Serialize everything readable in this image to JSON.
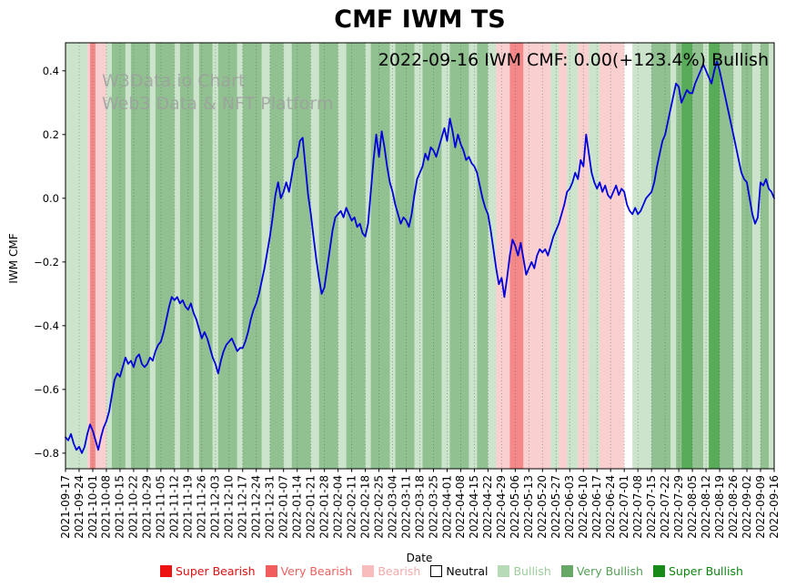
{
  "annotation": "2022-09-16 IWM CMF: 0.00(+123.4%) Bullish",
  "watermark": {
    "line1": "W3Data.io Chart",
    "line2": "Web3 Data & NFT Platform"
  },
  "legend": [
    {
      "label": "Super Bearish",
      "swatch": "#ee1111",
      "text": "#e01010",
      "border": false
    },
    {
      "label": "Very Bearish",
      "swatch": "#f15c5c",
      "text": "#ef6060",
      "border": false
    },
    {
      "label": "Bearish",
      "swatch": "#f8bcbc",
      "text": "#f3a9a9",
      "border": false
    },
    {
      "label": "Neutral",
      "swatch": "#ffffff",
      "text": "#000000",
      "border": true
    },
    {
      "label": "Bullish",
      "swatch": "#b7dab7",
      "text": "#9ccc9c",
      "border": false
    },
    {
      "label": "Very Bullish",
      "swatch": "#67a867",
      "text": "#55a055",
      "border": false
    },
    {
      "label": "Super Bullish",
      "swatch": "#188a18",
      "text": "#0e860e",
      "border": false
    }
  ],
  "chart_data": {
    "type": "line",
    "title": "CMF IWM TS",
    "xlabel": "Date",
    "ylabel": "IWM CMF",
    "ylim": [
      -0.849,
      0.488
    ],
    "grid": "vertical-dotted",
    "legend_position": "bottom",
    "yticks": [
      {
        "v": 0.4,
        "label": "0.4"
      },
      {
        "v": 0.2,
        "label": "0.2"
      },
      {
        "v": 0.0,
        "label": "0.0"
      },
      {
        "v": -0.2,
        "label": "−0.2"
      },
      {
        "v": -0.4,
        "label": "−0.4"
      },
      {
        "v": -0.6,
        "label": "−0.6"
      },
      {
        "v": -0.8,
        "label": "−0.8"
      }
    ],
    "points_per_tick": 5,
    "x_tick_labels": [
      "2021-09-17",
      "2021-09-24",
      "2021-10-01",
      "2021-10-08",
      "2021-10-15",
      "2021-10-22",
      "2021-10-29",
      "2021-11-05",
      "2021-11-12",
      "2021-11-19",
      "2021-11-26",
      "2021-12-03",
      "2021-12-10",
      "2021-12-17",
      "2021-12-24",
      "2021-12-31",
      "2022-01-07",
      "2022-01-14",
      "2022-01-21",
      "2022-01-28",
      "2022-02-04",
      "2022-02-11",
      "2022-02-18",
      "2022-02-25",
      "2022-03-04",
      "2022-03-11",
      "2022-03-18",
      "2022-03-25",
      "2022-04-01",
      "2022-04-08",
      "2022-04-15",
      "2022-04-22",
      "2022-04-29",
      "2022-05-06",
      "2022-05-13",
      "2022-05-20",
      "2022-05-27",
      "2022-06-03",
      "2022-06-10",
      "2022-06-17",
      "2022-06-24",
      "2022-07-01",
      "2022-07-08",
      "2022-07-15",
      "2022-07-22",
      "2022-07-29",
      "2022-08-05",
      "2022-08-12",
      "2022-08-19",
      "2022-08-26",
      "2022-09-02",
      "2022-09-09",
      "2022-09-16"
    ],
    "series": [
      {
        "name": "IWM CMF",
        "color": "#0000dd",
        "values": [
          -0.75,
          -0.76,
          -0.74,
          -0.77,
          -0.79,
          -0.78,
          -0.8,
          -0.78,
          -0.74,
          -0.71,
          -0.73,
          -0.76,
          -0.79,
          -0.75,
          -0.72,
          -0.7,
          -0.67,
          -0.62,
          -0.57,
          -0.55,
          -0.56,
          -0.53,
          -0.5,
          -0.52,
          -0.51,
          -0.53,
          -0.5,
          -0.49,
          -0.52,
          -0.53,
          -0.52,
          -0.5,
          -0.51,
          -0.48,
          -0.46,
          -0.45,
          -0.42,
          -0.38,
          -0.34,
          -0.31,
          -0.32,
          -0.31,
          -0.33,
          -0.32,
          -0.34,
          -0.35,
          -0.33,
          -0.36,
          -0.38,
          -0.41,
          -0.44,
          -0.42,
          -0.44,
          -0.47,
          -0.5,
          -0.52,
          -0.55,
          -0.51,
          -0.48,
          -0.46,
          -0.45,
          -0.44,
          -0.46,
          -0.48,
          -0.47,
          -0.47,
          -0.45,
          -0.42,
          -0.38,
          -0.35,
          -0.33,
          -0.3,
          -0.26,
          -0.22,
          -0.17,
          -0.12,
          -0.06,
          0.01,
          0.05,
          0.0,
          0.02,
          0.05,
          0.02,
          0.07,
          0.12,
          0.13,
          0.18,
          0.19,
          0.1,
          0.01,
          -0.05,
          -0.12,
          -0.19,
          -0.25,
          -0.3,
          -0.28,
          -0.22,
          -0.16,
          -0.1,
          -0.06,
          -0.05,
          -0.04,
          -0.06,
          -0.03,
          -0.05,
          -0.07,
          -0.06,
          -0.09,
          -0.08,
          -0.11,
          -0.12,
          -0.08,
          0.02,
          0.12,
          0.2,
          0.13,
          0.21,
          0.16,
          0.1,
          0.05,
          0.02,
          -0.02,
          -0.05,
          -0.08,
          -0.06,
          -0.07,
          -0.09,
          -0.05,
          0.01,
          0.06,
          0.08,
          0.1,
          0.14,
          0.12,
          0.16,
          0.15,
          0.13,
          0.16,
          0.19,
          0.22,
          0.18,
          0.25,
          0.21,
          0.16,
          0.2,
          0.17,
          0.15,
          0.12,
          0.13,
          0.11,
          0.1,
          0.08,
          0.04,
          0.0,
          -0.03,
          -0.05,
          -0.1,
          -0.16,
          -0.22,
          -0.27,
          -0.25,
          -0.31,
          -0.25,
          -0.18,
          -0.13,
          -0.15,
          -0.18,
          -0.14,
          -0.19,
          -0.24,
          -0.22,
          -0.2,
          -0.22,
          -0.18,
          -0.16,
          -0.17,
          -0.16,
          -0.18,
          -0.15,
          -0.12,
          -0.1,
          -0.08,
          -0.05,
          -0.02,
          0.02,
          0.03,
          0.05,
          0.08,
          0.06,
          0.12,
          0.1,
          0.2,
          0.14,
          0.08,
          0.05,
          0.03,
          0.05,
          0.02,
          0.04,
          0.01,
          0.0,
          0.02,
          0.04,
          0.01,
          0.03,
          0.02,
          -0.02,
          -0.04,
          -0.05,
          -0.03,
          -0.05,
          -0.04,
          -0.02,
          0.0,
          0.01,
          0.02,
          0.05,
          0.1,
          0.14,
          0.18,
          0.2,
          0.24,
          0.28,
          0.32,
          0.36,
          0.35,
          0.3,
          0.32,
          0.34,
          0.33,
          0.33,
          0.36,
          0.38,
          0.4,
          0.42,
          0.4,
          0.38,
          0.36,
          0.4,
          0.43,
          0.4,
          0.36,
          0.32,
          0.28,
          0.24,
          0.2,
          0.16,
          0.12,
          0.08,
          0.06,
          0.05,
          0.0,
          -0.05,
          -0.08,
          -0.06,
          0.05,
          0.04,
          0.06,
          0.03,
          0.02,
          0.0
        ]
      }
    ],
    "band_colors": {
      "super_bearish": "#ee1111",
      "very_bearish": "#f15c5c",
      "bearish": "#f8bcbc",
      "neutral": "#ffffff",
      "bullish": "#b7dab7",
      "very_bullish": "#67a867",
      "super_bullish": "#188a18"
    },
    "bands": [
      [
        0,
        8,
        "bullish"
      ],
      [
        8,
        9,
        "bearish"
      ],
      [
        9,
        11,
        "very_bearish"
      ],
      [
        11,
        15,
        "bearish"
      ],
      [
        15,
        17,
        "bullish"
      ],
      [
        17,
        22,
        "very_bullish"
      ],
      [
        22,
        24,
        "bullish"
      ],
      [
        24,
        31,
        "very_bullish"
      ],
      [
        31,
        33,
        "bullish"
      ],
      [
        33,
        40,
        "very_bullish"
      ],
      [
        40,
        42,
        "bullish"
      ],
      [
        42,
        47,
        "very_bullish"
      ],
      [
        47,
        49,
        "bullish"
      ],
      [
        49,
        54,
        "very_bullish"
      ],
      [
        54,
        56,
        "bullish"
      ],
      [
        56,
        63,
        "very_bullish"
      ],
      [
        63,
        65,
        "bullish"
      ],
      [
        65,
        72,
        "very_bullish"
      ],
      [
        72,
        75,
        "bullish"
      ],
      [
        75,
        80,
        "very_bullish"
      ],
      [
        80,
        83,
        "bullish"
      ],
      [
        83,
        90,
        "very_bullish"
      ],
      [
        90,
        93,
        "bullish"
      ],
      [
        93,
        100,
        "very_bullish"
      ],
      [
        100,
        103,
        "bullish"
      ],
      [
        103,
        110,
        "very_bullish"
      ],
      [
        110,
        112,
        "bullish"
      ],
      [
        112,
        119,
        "very_bullish"
      ],
      [
        119,
        121,
        "bullish"
      ],
      [
        121,
        128,
        "very_bullish"
      ],
      [
        128,
        131,
        "bullish"
      ],
      [
        131,
        138,
        "very_bullish"
      ],
      [
        138,
        141,
        "bullish"
      ],
      [
        141,
        148,
        "very_bullish"
      ],
      [
        148,
        151,
        "bullish"
      ],
      [
        151,
        155,
        "very_bullish"
      ],
      [
        155,
        158,
        "bullish"
      ],
      [
        158,
        163,
        "bearish"
      ],
      [
        163,
        168,
        "very_bearish"
      ],
      [
        168,
        178,
        "bearish"
      ],
      [
        178,
        181,
        "bullish"
      ],
      [
        181,
        184,
        "bearish"
      ],
      [
        184,
        188,
        "bullish"
      ],
      [
        188,
        192,
        "bearish"
      ],
      [
        192,
        196,
        "bullish"
      ],
      [
        196,
        205,
        "bearish"
      ],
      [
        205,
        208,
        "neutral"
      ],
      [
        208,
        215,
        "bullish"
      ],
      [
        215,
        222,
        "very_bullish"
      ],
      [
        222,
        224,
        "bullish"
      ],
      [
        224,
        226,
        "very_bullish"
      ],
      [
        226,
        230,
        "super_bullish"
      ],
      [
        230,
        234,
        "very_bullish"
      ],
      [
        234,
        236,
        "bullish"
      ],
      [
        236,
        240,
        "super_bullish"
      ],
      [
        240,
        245,
        "very_bullish"
      ],
      [
        245,
        248,
        "bullish"
      ],
      [
        248,
        252,
        "very_bullish"
      ],
      [
        252,
        255,
        "bullish"
      ],
      [
        255,
        258,
        "very_bullish"
      ],
      [
        258,
        261,
        "bullish"
      ]
    ]
  }
}
